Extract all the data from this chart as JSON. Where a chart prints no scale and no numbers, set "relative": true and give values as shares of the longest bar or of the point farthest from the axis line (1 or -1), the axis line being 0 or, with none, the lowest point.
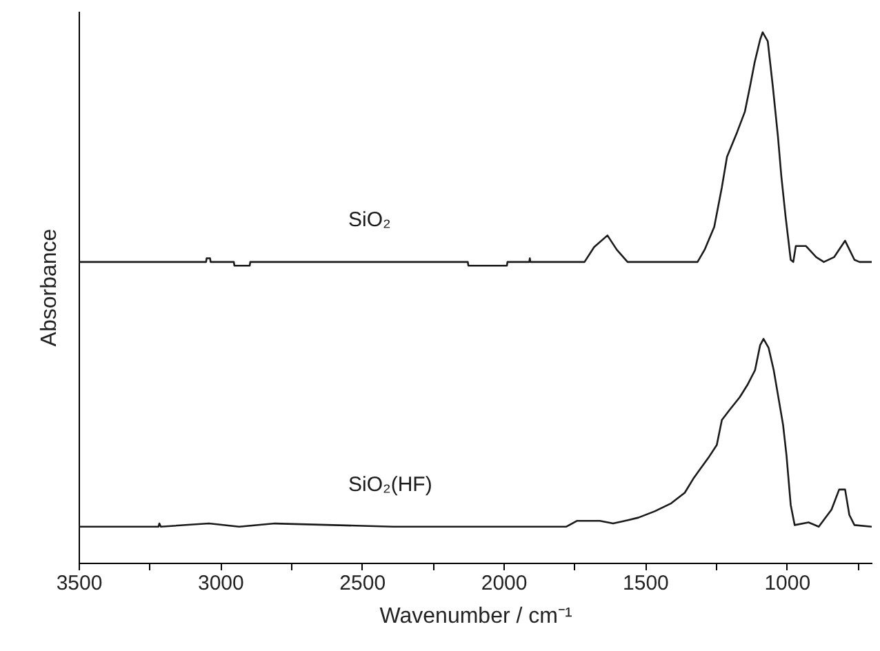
{
  "chart_data": {
    "type": "line",
    "relative": true,
    "xlabel": "Wavenumber / cm⁻¹",
    "ylabel": "Absorbance",
    "xlim": [
      3500,
      700
    ],
    "xticks": [
      3500,
      {
        "value": 3250,
        "label": null
      },
      3000,
      {
        "value": 2750,
        "label": null
      },
      2500,
      {
        "value": 2250,
        "label": null
      },
      2000,
      {
        "value": 1750,
        "label": null
      },
      1500,
      {
        "value": 1250,
        "label": null
      },
      1000,
      {
        "value": 750,
        "label": null
      }
    ],
    "grid": false,
    "marker": "none",
    "line_style": "solid",
    "series": [
      {
        "name": "SiO₂",
        "color": "#1a1a1a",
        "x": [
          3500,
          3050,
          3048,
          3036,
          3034,
          2952,
          2950,
          2896,
          2894,
          2126,
          2124,
          1988,
          1986,
          1909,
          1907,
          1905,
          1714,
          1680,
          1633,
          1600,
          1562,
          1315,
          1290,
          1256,
          1229,
          1211,
          1175,
          1148,
          1130,
          1113,
          1094,
          1085,
          1067,
          1049,
          1031,
          1019,
          1004,
          986,
          977,
          968,
          959,
          932,
          896,
          869,
          833,
          794,
          761,
          743,
          700
        ],
        "values": [
          0.567,
          0.567,
          0.574,
          0.574,
          0.567,
          0.567,
          0.56,
          0.56,
          0.567,
          0.567,
          0.56,
          0.56,
          0.567,
          0.567,
          0.574,
          0.567,
          0.567,
          0.595,
          0.617,
          0.59,
          0.567,
          0.567,
          0.59,
          0.633,
          0.708,
          0.765,
          0.812,
          0.85,
          0.897,
          0.944,
          0.986,
          1.0,
          0.983,
          0.897,
          0.803,
          0.728,
          0.652,
          0.571,
          0.567,
          0.597,
          0.597,
          0.597,
          0.576,
          0.567,
          0.576,
          0.607,
          0.571,
          0.567,
          0.567
        ]
      },
      {
        "name": "SiO₂(HF)",
        "color": "#1a1a1a",
        "x": [
          3500,
          3218,
          3215,
          3210,
          3040,
          2933,
          2807,
          2390,
          1778,
          1740,
          1690,
          1660,
          1613,
          1563,
          1524,
          1466,
          1408,
          1360,
          1328,
          1301,
          1274,
          1247,
          1229,
          1202,
          1166,
          1139,
          1112,
          1094,
          1082,
          1064,
          1046,
          1028,
          1013,
          1001,
          986,
          972,
          923,
          887,
          842,
          815,
          794,
          779,
          761,
          700
        ],
        "values": [
          0.068,
          0.068,
          0.074,
          0.068,
          0.074,
          0.068,
          0.074,
          0.068,
          0.068,
          0.079,
          0.079,
          0.079,
          0.074,
          0.08,
          0.085,
          0.097,
          0.112,
          0.132,
          0.16,
          0.18,
          0.2,
          0.222,
          0.269,
          0.288,
          0.312,
          0.335,
          0.363,
          0.41,
          0.422,
          0.405,
          0.363,
          0.307,
          0.26,
          0.203,
          0.109,
          0.071,
          0.076,
          0.068,
          0.1,
          0.138,
          0.138,
          0.09,
          0.071,
          0.068
        ]
      }
    ]
  }
}
